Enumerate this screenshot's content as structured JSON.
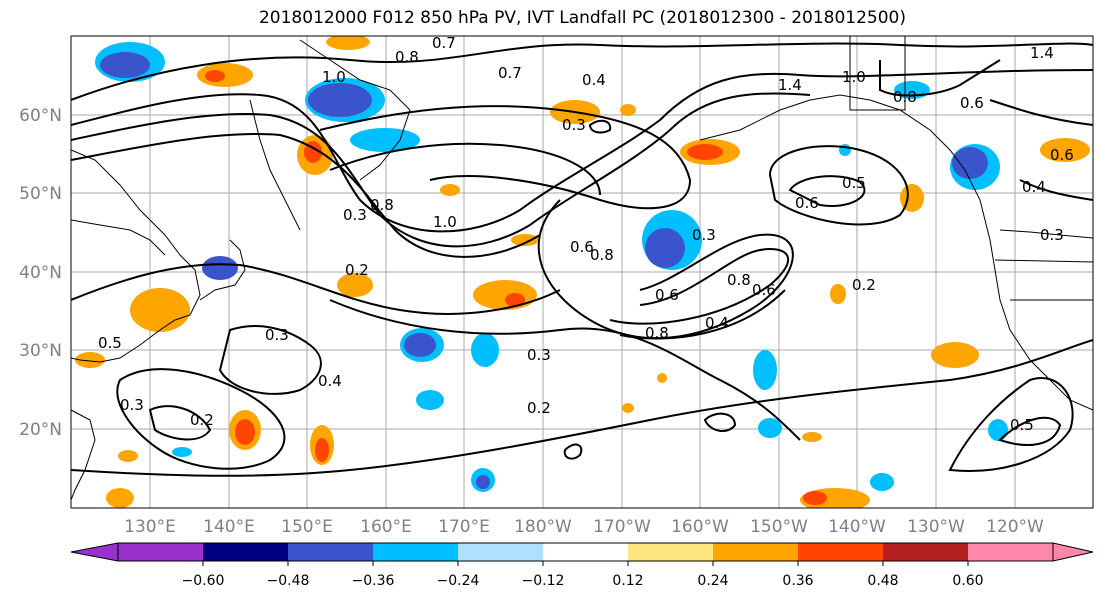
{
  "title": "2018012000 F012 850 hPa PV, IVT Landfall PC (2018012300 - 2018012500)",
  "map": {
    "lon_labels": [
      "130°E",
      "140°E",
      "150°E",
      "160°E",
      "170°E",
      "180°W",
      "170°W",
      "160°W",
      "150°W",
      "140°W",
      "130°W",
      "120°W"
    ],
    "lat_labels": [
      "60°N",
      "50°N",
      "40°N",
      "30°N",
      "20°N"
    ],
    "contour_labels": [
      "0.8",
      "0.7",
      "1.0",
      "0.7",
      "0.4",
      "0.3",
      "1.4",
      "1.0",
      "0.8",
      "0.6",
      "1.4",
      "0.8",
      "1.0",
      "0.6",
      "0.3",
      "0.8",
      "0.6",
      "0.5",
      "0.6",
      "0.3",
      "0.8",
      "0.6",
      "0.4",
      "0.8",
      "0.2",
      "0.2",
      "0.3",
      "0.5",
      "0.3",
      "0.4",
      "0.3",
      "0.2",
      "0.2",
      "0.5",
      "0.4",
      "0.3",
      "0.6"
    ],
    "colorbar": {
      "ticks": [
        "−0.60",
        "−0.48",
        "−0.36",
        "−0.24",
        "−0.12",
        "0.12",
        "0.24",
        "0.36",
        "0.48",
        "0.60"
      ],
      "colors": [
        "#9932cc",
        "#000080",
        "#3a55cc",
        "#00bfff",
        "#b0e0ff",
        "#ffffff",
        "#ffe680",
        "#ffa500",
        "#ff4500",
        "#b22222",
        "#ff88aa"
      ]
    }
  }
}
